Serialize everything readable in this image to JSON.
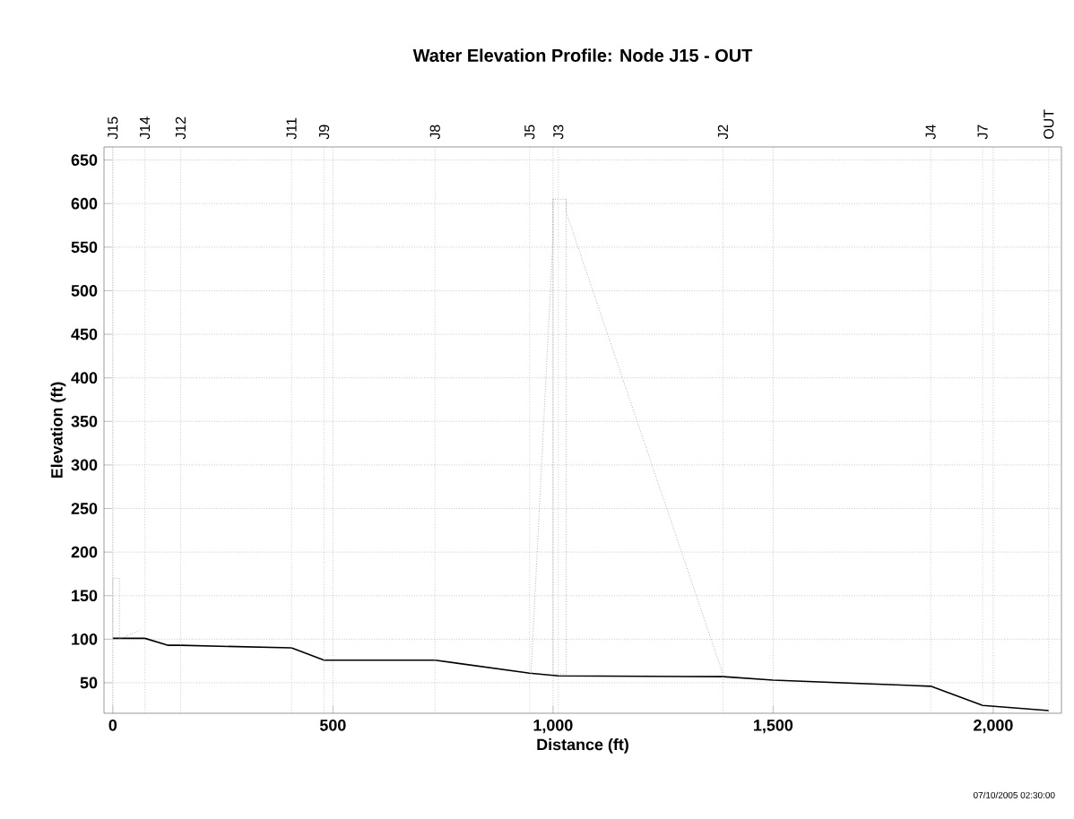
{
  "chart_data": {
    "type": "line",
    "title": "Water Elevation Profile:  Node J15 - OUT",
    "xlabel": "Distance (ft)",
    "ylabel": "Elevation (ft)",
    "xlim": [
      -20,
      2155
    ],
    "ylim": [
      15,
      665
    ],
    "xticks": [
      0,
      500,
      {
        "value": 1000,
        "label": "1,000"
      },
      {
        "value": 1500,
        "label": "1,500"
      },
      {
        "value": 2000,
        "label": "2,000"
      }
    ],
    "yticks": [
      50,
      100,
      150,
      200,
      250,
      300,
      350,
      400,
      450,
      500,
      550,
      600,
      650
    ],
    "ref_lines": [
      {
        "axis": "x",
        "value": 0,
        "label": "J15"
      },
      {
        "axis": "x",
        "value": 73,
        "label": "J14"
      },
      {
        "axis": "x",
        "value": 154,
        "label": "J12"
      },
      {
        "axis": "x",
        "value": 406,
        "label": "J11"
      },
      {
        "axis": "x",
        "value": 480,
        "label": "J9"
      },
      {
        "axis": "x",
        "value": 732,
        "label": "J8"
      },
      {
        "axis": "x",
        "value": 947,
        "label": "J5"
      },
      {
        "axis": "x",
        "value": 1012,
        "label": "J3"
      },
      {
        "axis": "x",
        "value": 1386,
        "label": "J2"
      },
      {
        "axis": "x",
        "value": 1858,
        "label": "J4"
      },
      {
        "axis": "x",
        "value": 1976,
        "label": "J7"
      },
      {
        "axis": "x",
        "value": 2126,
        "label": "OUT"
      }
    ],
    "grid": true,
    "marker": "none",
    "series": [
      {
        "color": "#000000",
        "line_style": "solid",
        "x": [
          0,
          73,
          126,
          154,
          406,
          480,
          732,
          947,
          1012,
          1386,
          1500,
          1858,
          1976,
          2126
        ],
        "values": [
          101,
          101,
          93,
          93,
          90,
          76,
          76,
          61,
          58,
          57,
          53,
          46,
          24,
          18
        ]
      },
      {
        "color": "#888888",
        "line_style": "dotted",
        "x": [
          0,
          0,
          15,
          15,
          60
        ],
        "values": [
          100,
          170,
          170,
          100,
          110
        ]
      },
      {
        "color": "#888888",
        "line_style": "dotted",
        "x": [
          950,
          1000,
          1000,
          1030,
          1030,
          1386
        ],
        "values": [
          60,
          560,
          605,
          605,
          590,
          60
        ]
      },
      {
        "color": "#888888",
        "line_style": "dotted",
        "x": [
          1000,
          1000,
          1030,
          1030
        ],
        "values": [
          605,
          60,
          60,
          605
        ]
      }
    ],
    "annotations": [
      "07/10/2005 02:30:00"
    ]
  }
}
